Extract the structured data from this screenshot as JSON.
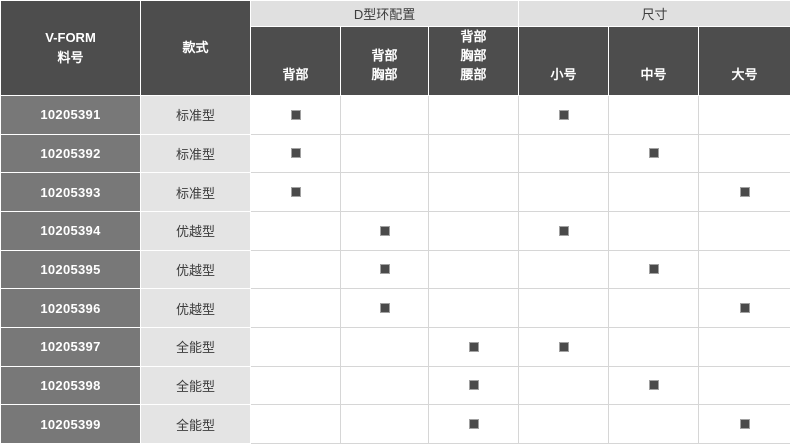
{
  "colors": {
    "header_dark": "#4d4d4d",
    "group_header_bg": "#e0e0e0",
    "part_column_bg": "#787878",
    "style_column_bg": "#e4e4e4",
    "mark_square": "#4a4a4a",
    "grid_line": "#d6d6d6"
  },
  "table": {
    "corner_header": {
      "lines": [
        "V-FORM",
        "料号"
      ]
    },
    "style_header": "款式",
    "groups": [
      {
        "label": "D型环配置",
        "span": 3
      },
      {
        "label": "尺寸",
        "span": 3
      }
    ],
    "sub_headers": [
      {
        "lines": [
          "背部"
        ]
      },
      {
        "lines": [
          "背部",
          "胸部"
        ]
      },
      {
        "lines": [
          "背部",
          "胸部",
          "腰部"
        ]
      },
      {
        "lines": [
          "小号"
        ]
      },
      {
        "lines": [
          "中号"
        ]
      },
      {
        "lines": [
          "大号"
        ]
      }
    ],
    "rows": [
      {
        "part_number": "10205391",
        "style": "标准型",
        "marks": [
          true,
          false,
          false,
          true,
          false,
          false
        ]
      },
      {
        "part_number": "10205392",
        "style": "标准型",
        "marks": [
          true,
          false,
          false,
          false,
          true,
          false
        ]
      },
      {
        "part_number": "10205393",
        "style": "标准型",
        "marks": [
          true,
          false,
          false,
          false,
          false,
          true
        ]
      },
      {
        "part_number": "10205394",
        "style": "优越型",
        "marks": [
          false,
          true,
          false,
          true,
          false,
          false
        ]
      },
      {
        "part_number": "10205395",
        "style": "优越型",
        "marks": [
          false,
          true,
          false,
          false,
          true,
          false
        ]
      },
      {
        "part_number": "10205396",
        "style": "优越型",
        "marks": [
          false,
          true,
          false,
          false,
          false,
          true
        ]
      },
      {
        "part_number": "10205397",
        "style": "全能型",
        "marks": [
          false,
          false,
          true,
          true,
          false,
          false
        ]
      },
      {
        "part_number": "10205398",
        "style": "全能型",
        "marks": [
          false,
          false,
          true,
          false,
          true,
          false
        ]
      },
      {
        "part_number": "10205399",
        "style": "全能型",
        "marks": [
          false,
          false,
          true,
          false,
          false,
          true
        ]
      }
    ]
  }
}
